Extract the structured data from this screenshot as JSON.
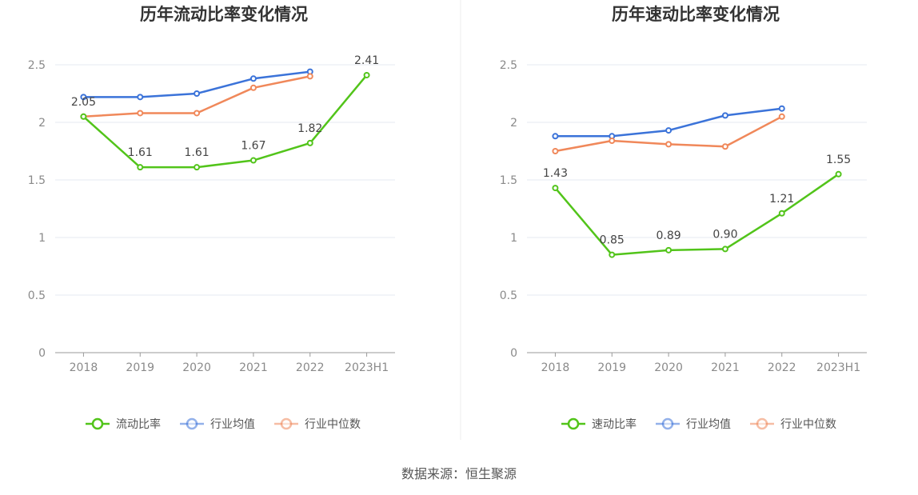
{
  "source_text": "数据来源：恒生聚源",
  "colors": {
    "company": "#52c41a",
    "industry_avg": "#3b73d9",
    "industry_median": "#f0885a",
    "grid": "#e6e9f2",
    "axis": "#999999"
  },
  "chart_data": [
    {
      "type": "line",
      "title": "历年流动比率变化情况",
      "categories": [
        "2018",
        "2019",
        "2020",
        "2021",
        "2022",
        "2023H1"
      ],
      "ylim": [
        0,
        2.5
      ],
      "yticks": [
        "0",
        "0.5",
        "1",
        "1.5",
        "2",
        "2.5"
      ],
      "yticks_values": [
        0,
        0.5,
        1,
        1.5,
        2,
        2.5
      ],
      "legend_position": "bottom-center",
      "series": [
        {
          "name": "流动比率",
          "color": "#52c41a",
          "values": [
            2.05,
            1.61,
            1.61,
            1.67,
            1.82,
            2.41
          ],
          "labels": [
            "2.05",
            "1.61",
            "1.61",
            "1.67",
            "1.82",
            "2.41"
          ]
        },
        {
          "name": "行业均值",
          "color": "#3b73d9",
          "values": [
            2.22,
            2.22,
            2.25,
            2.38,
            2.44,
            null
          ]
        },
        {
          "name": "行业中位数",
          "color": "#f0885a",
          "values": [
            2.05,
            2.08,
            2.08,
            2.3,
            2.4,
            null
          ]
        }
      ]
    },
    {
      "type": "line",
      "title": "历年速动比率变化情况",
      "categories": [
        "2018",
        "2019",
        "2020",
        "2021",
        "2022",
        "2023H1"
      ],
      "ylim": [
        0,
        2.5
      ],
      "yticks": [
        "0",
        "0.5",
        "1",
        "1.5",
        "2",
        "2.5"
      ],
      "yticks_values": [
        0,
        0.5,
        1,
        1.5,
        2,
        2.5
      ],
      "legend_position": "bottom-center",
      "series": [
        {
          "name": "速动比率",
          "color": "#52c41a",
          "values": [
            1.43,
            0.85,
            0.89,
            0.9,
            1.21,
            1.55
          ],
          "labels": [
            "1.43",
            "0.85",
            "0.89",
            "0.90",
            "1.21",
            "1.55"
          ]
        },
        {
          "name": "行业均值",
          "color": "#3b73d9",
          "values": [
            1.88,
            1.88,
            1.93,
            2.06,
            2.12,
            null
          ]
        },
        {
          "name": "行业中位数",
          "color": "#f0885a",
          "values": [
            1.75,
            1.84,
            1.81,
            1.79,
            2.05,
            null
          ]
        }
      ]
    }
  ]
}
